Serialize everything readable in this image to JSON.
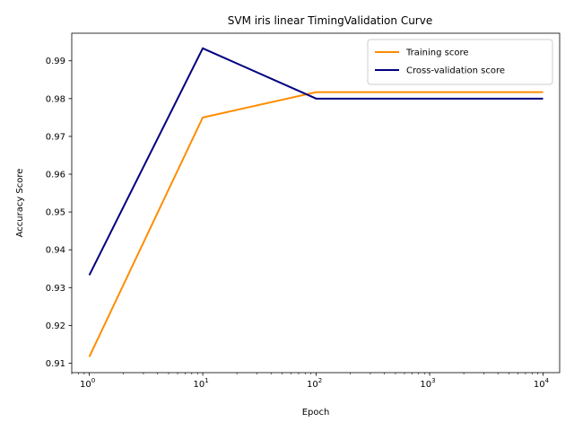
{
  "chart_data": {
    "type": "line",
    "title": "SVM iris linear TimingValidation Curve",
    "xlabel": "Epoch",
    "ylabel": "Accuracy Score",
    "x_scale": "log",
    "x_base": "10",
    "xlim": [
      0.7,
      14000
    ],
    "ylim": [
      0.9075,
      0.9973
    ],
    "x": [
      1,
      10,
      100,
      1000,
      10000
    ],
    "x_ticks": [
      1,
      10,
      100,
      1000,
      10000
    ],
    "x_tick_exponents": [
      "0",
      "1",
      "2",
      "3",
      "4"
    ],
    "y_ticks": [
      0.91,
      0.92,
      0.93,
      0.94,
      0.95,
      0.96,
      0.97,
      0.98,
      0.99
    ],
    "y_tick_labels": [
      "0.91",
      "0.92",
      "0.93",
      "0.94",
      "0.95",
      "0.96",
      "0.97",
      "0.98",
      "0.99"
    ],
    "grid": false,
    "legend_position": "top-right",
    "series": [
      {
        "name": "Training score",
        "color": "#ff8c00",
        "values": [
          0.9117,
          0.975,
          0.9817,
          0.9817,
          0.9817
        ]
      },
      {
        "name": "Cross-validation score",
        "color": "#000080",
        "values": [
          0.9333,
          0.9933,
          0.98,
          0.98,
          0.98
        ]
      }
    ]
  }
}
